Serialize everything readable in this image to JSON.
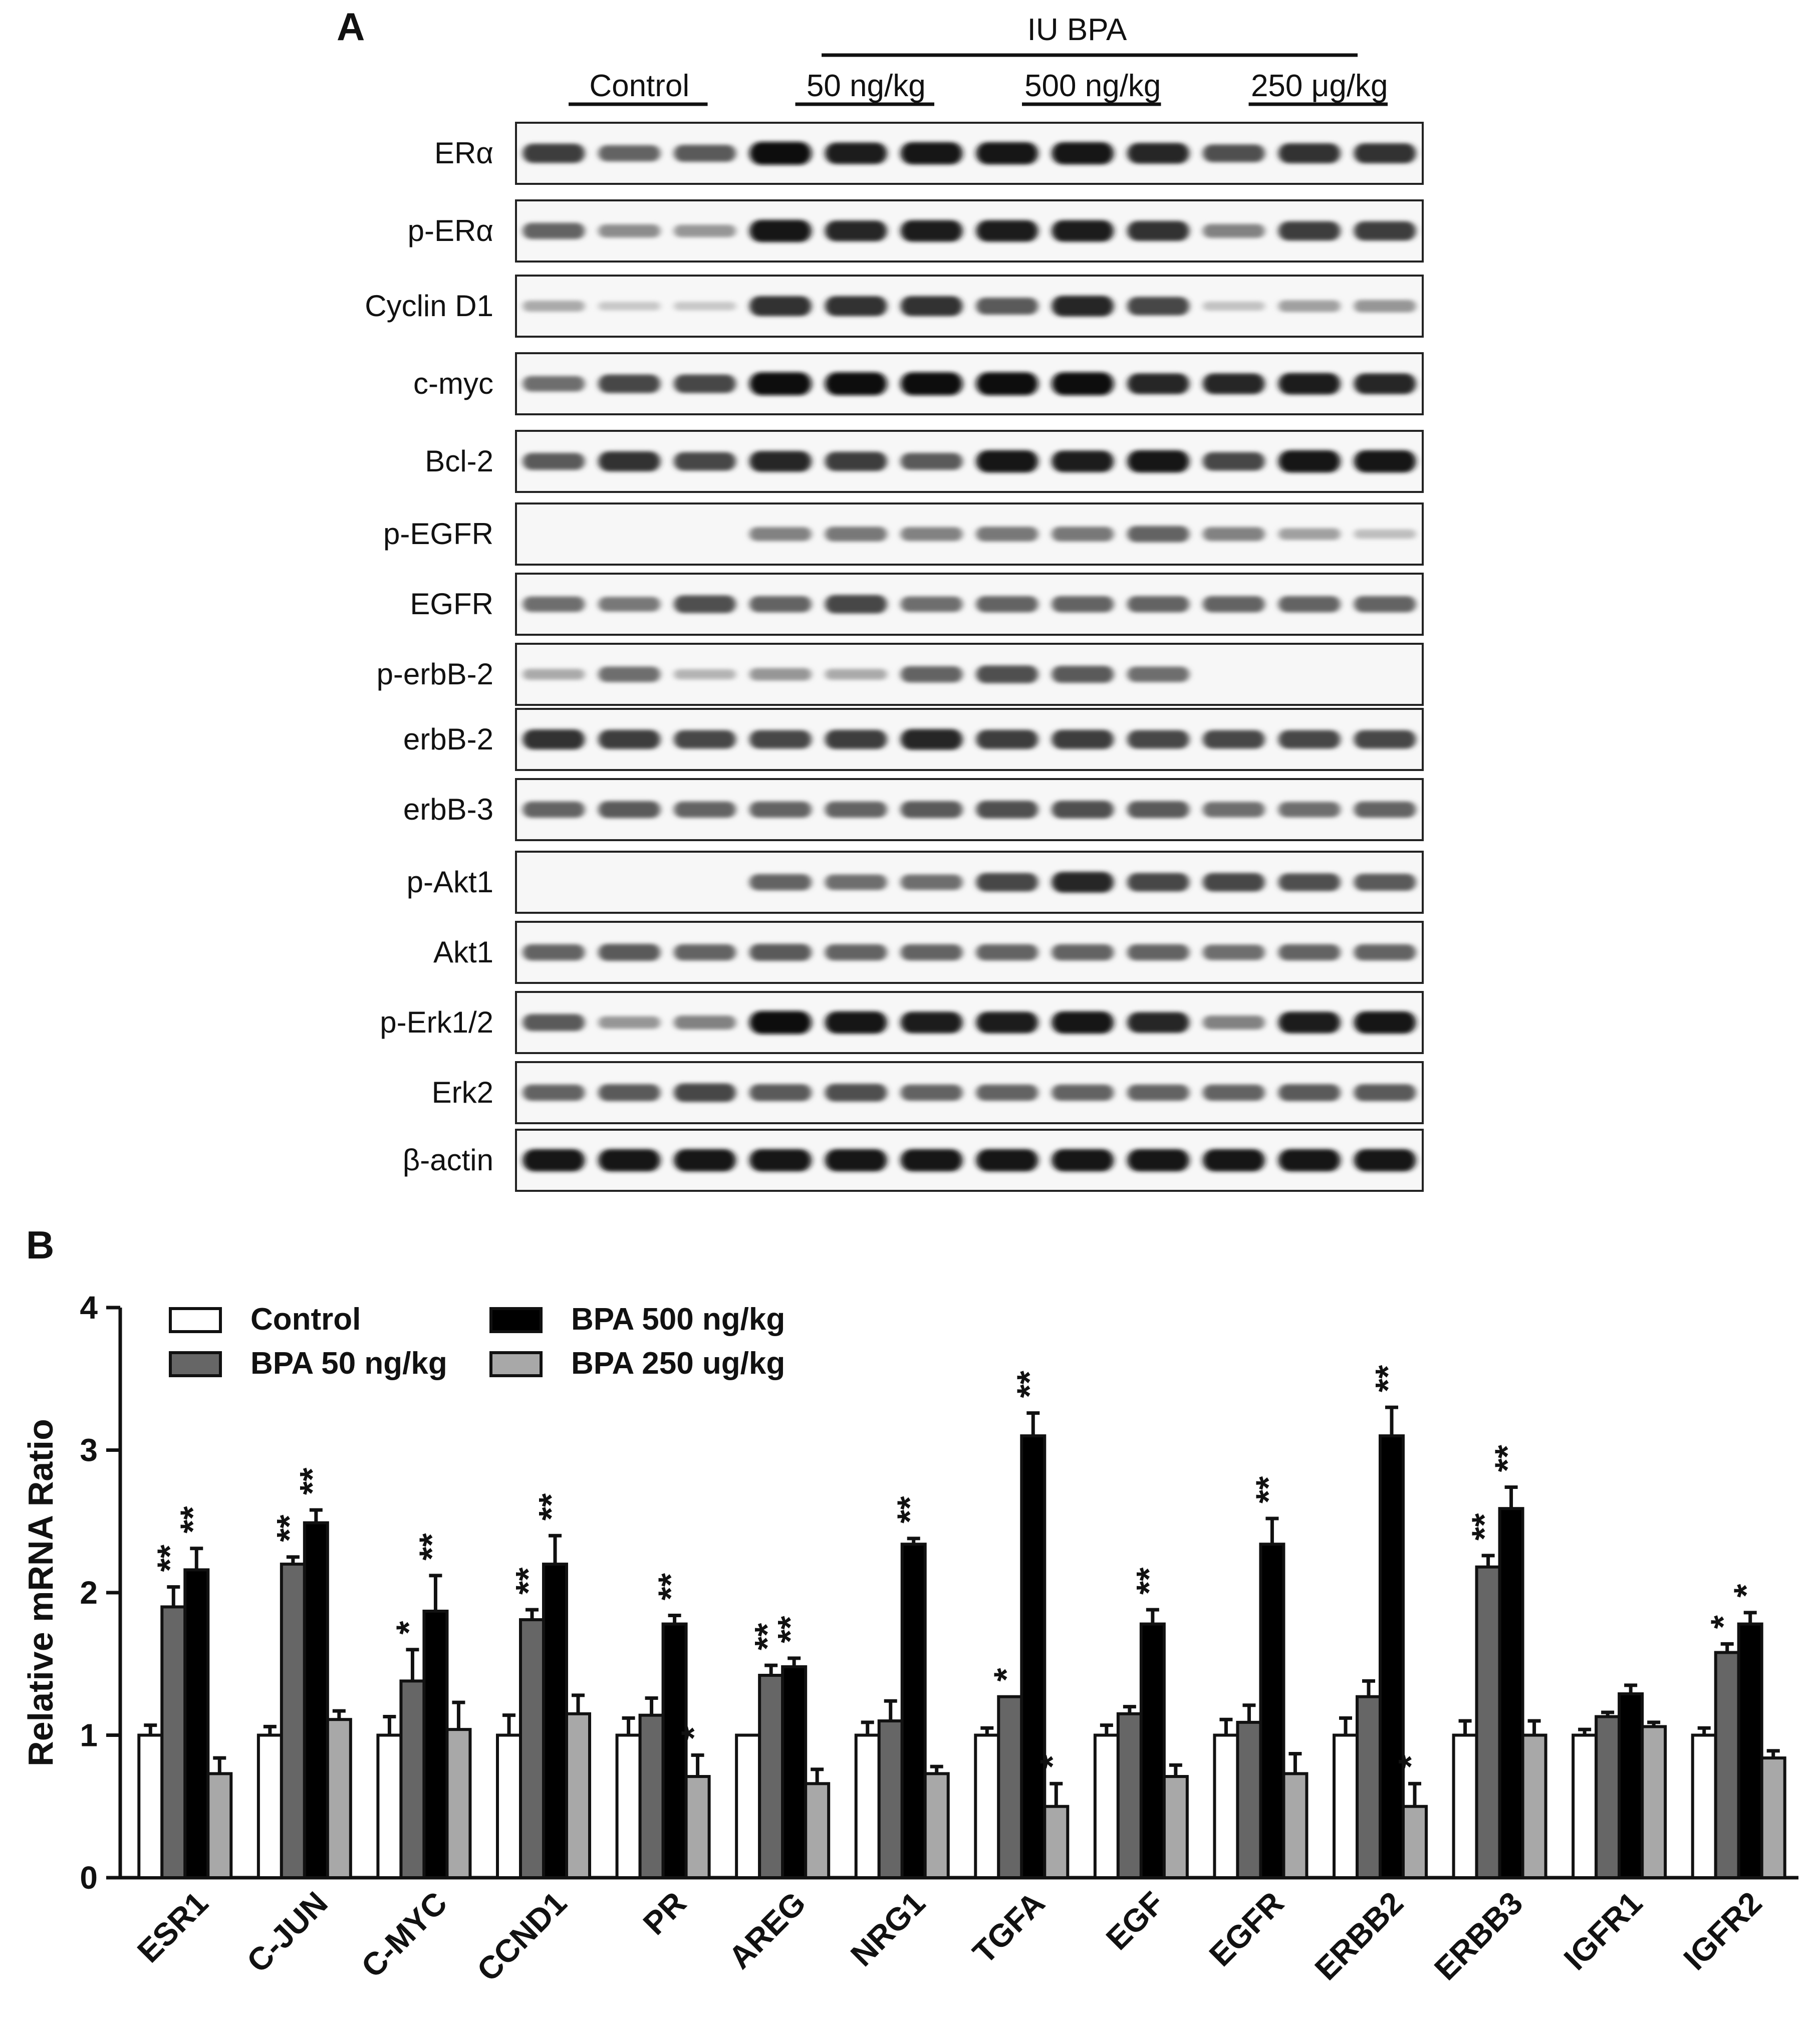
{
  "panel_a": {
    "letter": "A",
    "header": {
      "treatment_label": "IU BPA",
      "groups": [
        "Control",
        "50 ng/kg",
        "500 ng/kg",
        "250 μg/kg"
      ]
    },
    "blots": [
      {
        "label": "ERα",
        "intensity": [
          0.75,
          0.55,
          0.6,
          1.0,
          0.9,
          0.95,
          0.95,
          0.95,
          0.85,
          0.65,
          0.8,
          0.8
        ]
      },
      {
        "label": "p-ERα",
        "intensity": [
          0.55,
          0.35,
          0.3,
          0.95,
          0.85,
          0.9,
          0.9,
          0.9,
          0.8,
          0.4,
          0.75,
          0.75
        ]
      },
      {
        "label": "Cyclin D1",
        "intensity": [
          0.2,
          0.05,
          0.05,
          0.8,
          0.8,
          0.8,
          0.6,
          0.85,
          0.7,
          0.08,
          0.25,
          0.3
        ]
      },
      {
        "label": "c-myc",
        "intensity": [
          0.5,
          0.7,
          0.7,
          1.0,
          1.0,
          1.0,
          1.0,
          1.0,
          0.85,
          0.85,
          0.9,
          0.85
        ]
      },
      {
        "label": "Bcl-2",
        "intensity": [
          0.6,
          0.8,
          0.7,
          0.85,
          0.75,
          0.6,
          0.95,
          0.9,
          0.95,
          0.7,
          0.95,
          0.95
        ]
      },
      {
        "label": "p-EGFR",
        "intensity": [
          0.0,
          0.0,
          0.0,
          0.4,
          0.45,
          0.4,
          0.45,
          0.45,
          0.55,
          0.4,
          0.25,
          0.1
        ]
      },
      {
        "label": "EGFR",
        "intensity": [
          0.5,
          0.45,
          0.65,
          0.55,
          0.7,
          0.5,
          0.55,
          0.55,
          0.55,
          0.55,
          0.55,
          0.55
        ]
      },
      {
        "label": "p-erbB-2",
        "intensity": [
          0.2,
          0.5,
          0.15,
          0.3,
          0.2,
          0.55,
          0.65,
          0.6,
          0.5,
          0.0,
          0.0,
          0.0
        ]
      },
      {
        "label": "erbB-2",
        "intensity": [
          0.8,
          0.75,
          0.7,
          0.7,
          0.75,
          0.85,
          0.75,
          0.75,
          0.7,
          0.7,
          0.7,
          0.7
        ]
      },
      {
        "label": "erbB-3",
        "intensity": [
          0.55,
          0.6,
          0.55,
          0.55,
          0.55,
          0.6,
          0.65,
          0.65,
          0.6,
          0.5,
          0.5,
          0.55
        ]
      },
      {
        "label": "p-Akt1",
        "intensity": [
          0.0,
          0.0,
          0.0,
          0.55,
          0.5,
          0.5,
          0.7,
          0.85,
          0.7,
          0.7,
          0.65,
          0.6
        ]
      },
      {
        "label": "Akt1",
        "intensity": [
          0.55,
          0.6,
          0.55,
          0.6,
          0.55,
          0.55,
          0.55,
          0.55,
          0.55,
          0.5,
          0.55,
          0.55
        ]
      },
      {
        "label": "p-Erk1/2",
        "intensity": [
          0.6,
          0.3,
          0.4,
          1.0,
          0.95,
          0.9,
          0.9,
          0.95,
          0.85,
          0.4,
          0.9,
          0.95
        ]
      },
      {
        "label": "Erk2",
        "intensity": [
          0.55,
          0.6,
          0.7,
          0.6,
          0.65,
          0.55,
          0.55,
          0.55,
          0.55,
          0.55,
          0.6,
          0.6
        ]
      },
      {
        "label": "β-actin",
        "intensity": [
          0.95,
          0.95,
          0.95,
          0.95,
          0.95,
          0.95,
          0.95,
          0.95,
          0.95,
          0.95,
          0.95,
          0.95
        ]
      }
    ]
  },
  "panel_b": {
    "letter": "B"
  },
  "chart_data": {
    "type": "bar",
    "ylabel": "Relative mRNA Ratio",
    "xlabel": "",
    "ylim": [
      0,
      4
    ],
    "yticks": [
      0,
      1,
      2,
      3,
      4
    ],
    "legend_placement": "top-left",
    "categories": [
      "ESR1",
      "C-JUN",
      "C-MYC",
      "CCND1",
      "PR",
      "AREG",
      "NRG1",
      "TGFA",
      "EGF",
      "EGFR",
      "ERBB2",
      "ERBB3",
      "IGFR1",
      "IGFR2"
    ],
    "series": [
      {
        "name": "Control",
        "color": "#ffffff",
        "values": [
          1.0,
          1.0,
          1.0,
          1.0,
          1.0,
          1.0,
          1.0,
          1.0,
          1.0,
          1.0,
          1.0,
          1.0,
          1.0,
          1.0
        ],
        "errors": [
          0.07,
          0.06,
          0.13,
          0.14,
          0.12,
          0.0,
          0.09,
          0.05,
          0.07,
          0.11,
          0.12,
          0.1,
          0.04,
          0.05
        ],
        "significance": [
          "",
          "",
          "",
          "",
          "",
          "",
          "",
          "",
          "",
          "",
          "",
          "",
          "",
          ""
        ]
      },
      {
        "name": "BPA 50 ng/kg",
        "color": "#666666",
        "values": [
          1.9,
          2.2,
          1.38,
          1.81,
          1.14,
          1.42,
          1.1,
          1.27,
          1.15,
          1.09,
          1.27,
          2.18,
          1.13,
          1.58
        ],
        "errors": [
          0.14,
          0.05,
          0.22,
          0.07,
          0.12,
          0.07,
          0.14,
          0.0,
          0.05,
          0.12,
          0.11,
          0.08,
          0.03,
          0.06
        ],
        "significance": [
          "**",
          "**",
          "*",
          "**",
          "",
          "**",
          "",
          "*",
          "",
          "",
          "",
          "**",
          "",
          "*"
        ]
      },
      {
        "name": "BPA 500 ng/kg",
        "color": "#000000",
        "values": [
          2.16,
          2.49,
          1.87,
          2.2,
          1.78,
          1.48,
          2.34,
          3.1,
          1.78,
          2.34,
          3.1,
          2.59,
          1.29,
          1.78
        ],
        "errors": [
          0.15,
          0.09,
          0.25,
          0.2,
          0.06,
          0.06,
          0.04,
          0.16,
          0.1,
          0.18,
          0.2,
          0.15,
          0.06,
          0.08
        ],
        "significance": [
          "**",
          "**",
          "**",
          "**",
          "**",
          "**",
          "**",
          "**",
          "**",
          "**",
          "**",
          "**",
          "",
          "*"
        ]
      },
      {
        "name": "BPA 250 ug/kg",
        "color": "#a8a8a8",
        "values": [
          0.73,
          1.11,
          1.04,
          1.15,
          0.71,
          0.66,
          0.73,
          0.5,
          0.71,
          0.73,
          0.5,
          1.0,
          1.06,
          0.84
        ],
        "errors": [
          0.11,
          0.06,
          0.19,
          0.13,
          0.15,
          0.1,
          0.05,
          0.16,
          0.08,
          0.14,
          0.16,
          0.1,
          0.03,
          0.05
        ],
        "significance": [
          "",
          "",
          "",
          "",
          "*",
          "",
          "",
          "*",
          "",
          "",
          "*",
          "",
          "",
          ""
        ]
      }
    ]
  }
}
